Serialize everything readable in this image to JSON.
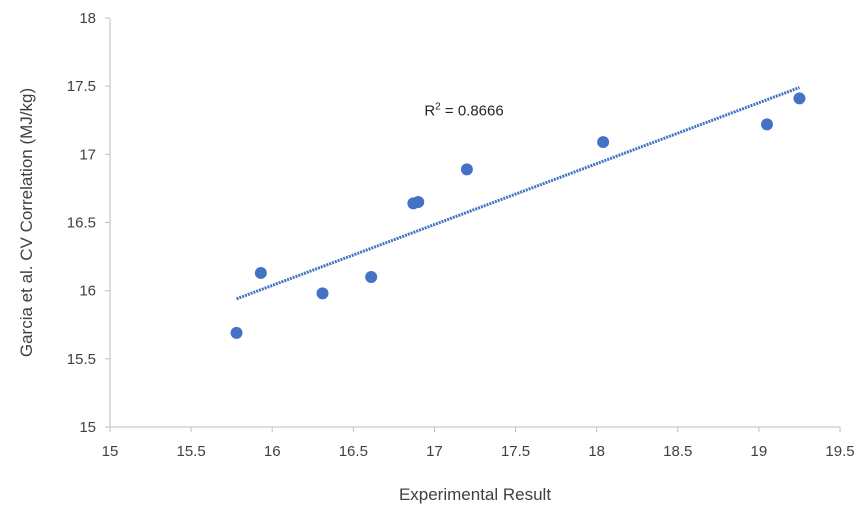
{
  "chart_data": {
    "type": "scatter",
    "xlabel": "Experimental Result",
    "ylabel": "Garcia et al. CV Correlation (MJ/kg)",
    "xlim": [
      15,
      19.5
    ],
    "ylim": [
      15,
      18
    ],
    "xticks": [
      "15",
      "15.5",
      "16",
      "16.5",
      "17",
      "17.5",
      "18",
      "18.5",
      "19",
      "19.5"
    ],
    "yticks": [
      "15",
      "15.5",
      "16",
      "16.5",
      "17",
      "17.5",
      "18"
    ],
    "grid": false,
    "legend": "none",
    "series": [
      {
        "color": "#4472C4",
        "points": [
          {
            "x": 15.78,
            "y": 15.69
          },
          {
            "x": 15.93,
            "y": 16.13
          },
          {
            "x": 16.31,
            "y": 15.98
          },
          {
            "x": 16.61,
            "y": 16.1
          },
          {
            "x": 16.87,
            "y": 16.64
          },
          {
            "x": 16.9,
            "y": 16.65
          },
          {
            "x": 17.2,
            "y": 16.89
          },
          {
            "x": 18.04,
            "y": 17.09
          },
          {
            "x": 19.05,
            "y": 17.22
          },
          {
            "x": 19.25,
            "y": 17.41
          }
        ]
      }
    ],
    "trendline": {
      "type": "linear",
      "color": "#4472C4",
      "start": {
        "x": 15.78,
        "y": 15.94
      },
      "end": {
        "x": 19.25,
        "y": 17.49
      }
    },
    "annotation": {
      "prefix": "R",
      "superscript": "2",
      "suffix": " = 0.8666",
      "x": 16.95,
      "y": 17.32
    }
  }
}
